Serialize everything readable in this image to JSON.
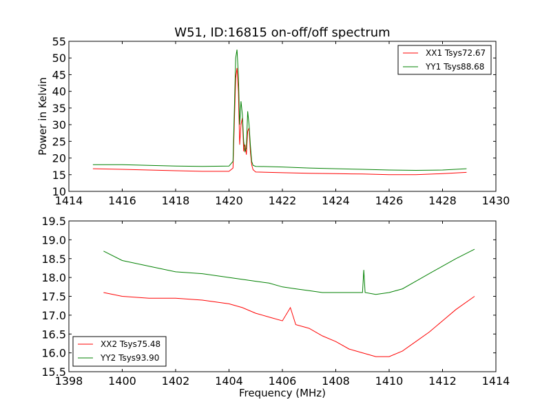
{
  "title": "W51, ID:16815 on-off/off spectrum",
  "colors": {
    "red": "#ff0000",
    "green": "#008000"
  },
  "chart_data": [
    {
      "type": "line",
      "title": "W51, ID:16815 on-off/off spectrum",
      "xlabel": "",
      "ylabel": "Power in Kelvin",
      "xlim": [
        1414,
        1430
      ],
      "ylim": [
        10,
        55
      ],
      "xticks": [
        1414,
        1416,
        1418,
        1420,
        1422,
        1424,
        1426,
        1428,
        1430
      ],
      "yticks": [
        10,
        15,
        20,
        25,
        30,
        35,
        40,
        45,
        50,
        55
      ],
      "legend_position": "top-right",
      "series": [
        {
          "name": "XX1 Tsys72.67",
          "color": "#ff0000",
          "x": [
            1414.9,
            1416,
            1417,
            1418,
            1419,
            1420,
            1420.15,
            1420.25,
            1420.3,
            1420.35,
            1420.4,
            1420.45,
            1420.5,
            1420.55,
            1420.6,
            1420.65,
            1420.7,
            1420.75,
            1420.8,
            1420.85,
            1420.9,
            1421,
            1422,
            1423,
            1424,
            1425,
            1426,
            1427,
            1428,
            1428.9
          ],
          "y": [
            16.8,
            16.6,
            16.4,
            16.2,
            16.0,
            16.0,
            17.0,
            44.0,
            47.0,
            40.0,
            24.0,
            30.0,
            32.0,
            22.0,
            24.0,
            21.0,
            28.0,
            29.0,
            22.0,
            18.0,
            16.5,
            15.8,
            15.6,
            15.4,
            15.3,
            15.2,
            15.0,
            15.0,
            15.3,
            15.7
          ]
        },
        {
          "name": "YY1 Tsys88.68",
          "color": "#008000",
          "x": [
            1414.9,
            1416,
            1417,
            1418,
            1419,
            1420,
            1420.15,
            1420.25,
            1420.3,
            1420.35,
            1420.4,
            1420.45,
            1420.5,
            1420.55,
            1420.6,
            1420.65,
            1420.7,
            1420.75,
            1420.8,
            1420.85,
            1420.9,
            1421,
            1422,
            1423,
            1424,
            1425,
            1426,
            1427,
            1428,
            1428.9
          ],
          "y": [
            18.0,
            18.0,
            17.8,
            17.6,
            17.5,
            17.6,
            19.0,
            50.0,
            52.5,
            45.0,
            30.0,
            37.0,
            33.0,
            25.0,
            22.0,
            23.0,
            34.0,
            30.0,
            24.0,
            19.0,
            17.8,
            17.5,
            17.3,
            17.0,
            16.8,
            16.6,
            16.4,
            16.3,
            16.4,
            16.8
          ]
        }
      ]
    },
    {
      "type": "line",
      "title": "",
      "xlabel": "Frequency (MHz)",
      "ylabel": "",
      "xlim": [
        1398,
        1414
      ],
      "ylim": [
        15.5,
        19.5
      ],
      "xticks": [
        1398,
        1400,
        1402,
        1404,
        1406,
        1408,
        1410,
        1412,
        1414
      ],
      "yticks": [
        15.5,
        16.0,
        16.5,
        17.0,
        17.5,
        18.0,
        18.5,
        19.0,
        19.5
      ],
      "legend_position": "bottom-left",
      "series": [
        {
          "name": "XX2 Tsys75.48",
          "color": "#ff0000",
          "x": [
            1399.3,
            1400,
            1401,
            1402,
            1403,
            1404,
            1404.5,
            1405,
            1405.5,
            1406,
            1406.3,
            1406.5,
            1407,
            1407.5,
            1408,
            1408.5,
            1409,
            1409.5,
            1410,
            1410.5,
            1411,
            1411.5,
            1412,
            1412.5,
            1413.2
          ],
          "y": [
            17.6,
            17.5,
            17.45,
            17.45,
            17.4,
            17.3,
            17.2,
            17.05,
            16.95,
            16.85,
            17.2,
            16.75,
            16.65,
            16.45,
            16.3,
            16.1,
            16.0,
            15.9,
            15.9,
            16.05,
            16.3,
            16.55,
            16.85,
            17.15,
            17.5
          ]
        },
        {
          "name": "YY2 Tsys93.90",
          "color": "#008000",
          "x": [
            1399.3,
            1400,
            1401,
            1402,
            1403,
            1404,
            1404.5,
            1405,
            1405.5,
            1406,
            1406.5,
            1407,
            1407.5,
            1408,
            1408.5,
            1409,
            1409.05,
            1409.1,
            1409.5,
            1410,
            1410.5,
            1411,
            1411.5,
            1412,
            1412.5,
            1413.2
          ],
          "y": [
            18.7,
            18.45,
            18.3,
            18.15,
            18.1,
            18.0,
            17.95,
            17.9,
            17.85,
            17.75,
            17.7,
            17.65,
            17.6,
            17.6,
            17.6,
            17.6,
            18.2,
            17.6,
            17.55,
            17.6,
            17.7,
            17.9,
            18.1,
            18.3,
            18.5,
            18.75
          ]
        }
      ]
    }
  ]
}
